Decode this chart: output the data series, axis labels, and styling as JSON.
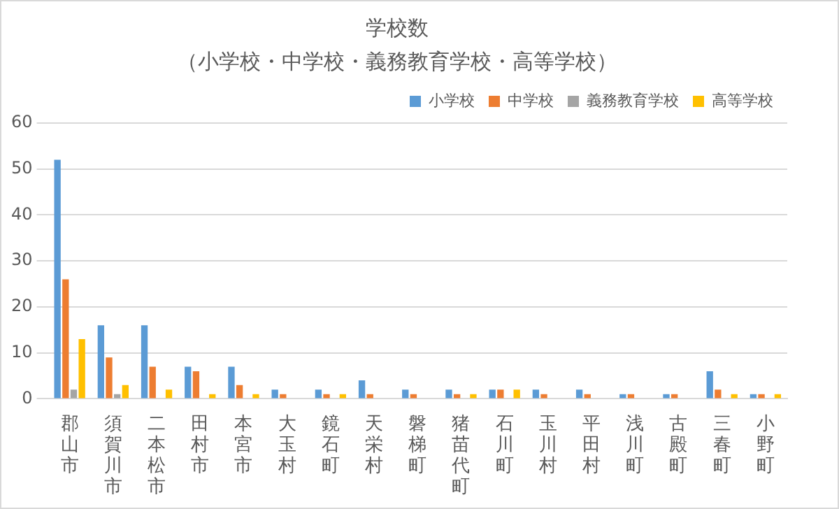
{
  "chart_data": {
    "type": "bar",
    "title": "学校数",
    "subtitle": "（小学校・中学校・義務教育学校・高等学校）",
    "categories": [
      "郡山市",
      "須賀川市",
      "二本松市",
      "田村市",
      "本宮市",
      "大玉村",
      "鏡石町",
      "天栄村",
      "磐梯町",
      "猪苗代町",
      "石川町",
      "玉川村",
      "平田村",
      "浅川町",
      "古殿町",
      "三春町",
      "小野町"
    ],
    "series": [
      {
        "name": "小学校",
        "color": "#5b9bd5",
        "values": [
          52,
          16,
          16,
          7,
          7,
          2,
          2,
          4,
          2,
          2,
          2,
          2,
          2,
          1,
          1,
          6,
          1
        ]
      },
      {
        "name": "中学校",
        "color": "#ed7d31",
        "values": [
          26,
          9,
          7,
          6,
          3,
          1,
          1,
          1,
          1,
          1,
          2,
          1,
          1,
          1,
          1,
          2,
          1
        ]
      },
      {
        "name": "義務教育学校",
        "color": "#a5a5a5",
        "values": [
          2,
          1,
          0,
          0,
          0,
          0,
          0,
          0,
          0,
          0,
          0,
          0,
          0,
          0,
          0,
          0,
          0
        ]
      },
      {
        "name": "高等学校",
        "color": "#ffc000",
        "values": [
          13,
          3,
          2,
          1,
          1,
          0,
          1,
          0,
          0,
          1,
          2,
          0,
          0,
          0,
          0,
          1,
          1
        ]
      }
    ],
    "ylim": [
      0,
      60
    ],
    "yticks": [
      0,
      10,
      20,
      30,
      40,
      50,
      60
    ],
    "grid": "y",
    "legend": "top right"
  }
}
